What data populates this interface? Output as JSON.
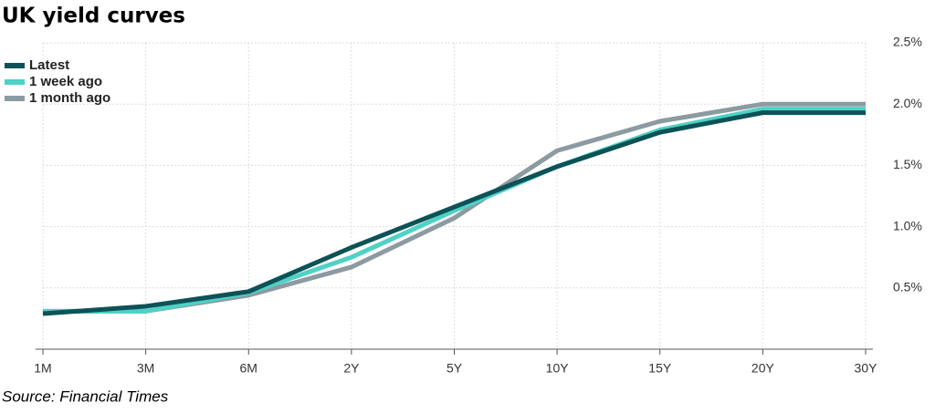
{
  "chart_data": {
    "type": "line",
    "title": "UK yield curves",
    "source": "Source: Financial Times",
    "categories": [
      "1M",
      "3M",
      "6M",
      "2Y",
      "5Y",
      "10Y",
      "15Y",
      "20Y",
      "30Y"
    ],
    "series": [
      {
        "name": "Latest",
        "color": "#0d5257",
        "values": [
          0.29,
          0.35,
          0.47,
          0.83,
          1.16,
          1.49,
          1.77,
          1.93,
          1.93
        ]
      },
      {
        "name": "1 week ago",
        "color": "#4fd1c5",
        "values": [
          0.31,
          0.31,
          0.46,
          0.75,
          1.13,
          1.49,
          1.79,
          1.96,
          1.96
        ]
      },
      {
        "name": "1 month ago",
        "color": "#8c9aa1",
        "values": [
          0.31,
          0.31,
          0.44,
          0.67,
          1.07,
          1.62,
          1.86,
          2.0,
          2.0
        ]
      }
    ],
    "ylim": [
      0,
      2.5
    ],
    "yticks": [
      {
        "value": 0.5,
        "label": "0.5%"
      },
      {
        "value": 1.0,
        "label": "1.0%"
      },
      {
        "value": 1.5,
        "label": "1.5%"
      },
      {
        "value": 2.0,
        "label": "2.0%"
      },
      {
        "value": 2.5,
        "label": "2.5%"
      }
    ],
    "grid": true,
    "legend": "top-left"
  }
}
